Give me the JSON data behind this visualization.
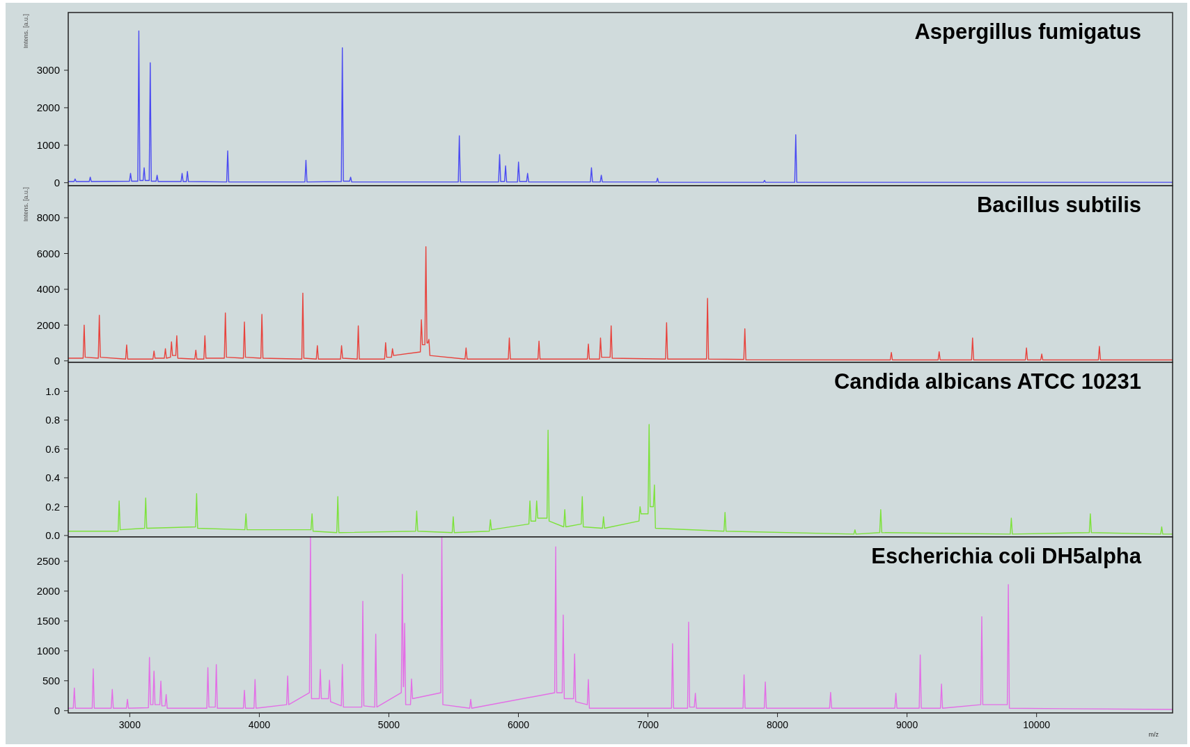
{
  "chart_data": [
    {
      "type": "line",
      "title": "Aspergillus fumigatus",
      "ylabel": "Intens. [a.u.]",
      "xlim": [
        2525,
        11050
      ],
      "ylim": [
        -80,
        4540
      ],
      "yticks": [
        0,
        1000,
        2000,
        3000
      ],
      "tick_labels": "y",
      "color": "#4a4af2",
      "x": [
        2525,
        2570,
        2578,
        2586,
        2687,
        2695,
        2703,
        2998,
        3006,
        3014,
        3062,
        3070,
        3078,
        3103,
        3111,
        3119,
        3150,
        3158,
        3166,
        3203,
        3211,
        3219,
        3396,
        3404,
        3412,
        3437,
        3445,
        3453,
        3748,
        3756,
        3764,
        4352,
        4360,
        4368,
        4633,
        4641,
        4649,
        4697,
        4705,
        4713,
        5536,
        5544,
        5552,
        5847,
        5855,
        5863,
        5893,
        5901,
        5909,
        5993,
        6001,
        6009,
        6063,
        6071,
        6079,
        6556,
        6564,
        6572,
        6632,
        6640,
        6648,
        7066,
        7074,
        7082,
        7892,
        7900,
        7908,
        8133,
        8141,
        8149,
        11050
      ],
      "values": [
        30,
        30,
        100,
        30,
        30,
        150,
        30,
        40,
        250,
        40,
        40,
        4050,
        60,
        60,
        400,
        60,
        60,
        3200,
        40,
        40,
        200,
        30,
        30,
        250,
        30,
        30,
        300,
        30,
        20,
        850,
        20,
        20,
        600,
        20,
        30,
        3600,
        40,
        40,
        150,
        20,
        20,
        1250,
        20,
        20,
        750,
        30,
        30,
        450,
        20,
        20,
        550,
        30,
        30,
        250,
        20,
        20,
        400,
        20,
        20,
        200,
        20,
        20,
        120,
        10,
        10,
        60,
        10,
        10,
        1280,
        10,
        10
      ]
    },
    {
      "type": "line",
      "title": "Bacillus subtilis",
      "ylabel": "Intens. [a.u.]",
      "xlim": [
        2525,
        11050
      ],
      "ylim": [
        -85,
        9790
      ],
      "yticks": [
        0,
        2000,
        4000,
        6000,
        8000
      ],
      "tick_labels": "y",
      "color": "#e8423c",
      "x": [
        2525,
        2640,
        2648,
        2656,
        2757,
        2765,
        2773,
        2968,
        2976,
        2984,
        3179,
        3187,
        3195,
        3267,
        3275,
        3283,
        3314,
        3322,
        3330,
        3355,
        3363,
        3371,
        3502,
        3510,
        3518,
        3572,
        3580,
        3588,
        3730,
        3738,
        3746,
        3877,
        3885,
        3893,
        4012,
        4020,
        4028,
        4328,
        4336,
        4344,
        4440,
        4448,
        4456,
        4627,
        4635,
        4643,
        4756,
        4764,
        4772,
        4967,
        4975,
        4983,
        5020,
        5028,
        5036,
        5243,
        5251,
        5259,
        5278,
        5286,
        5294,
        5301,
        5309,
        5317,
        5588,
        5596,
        5604,
        5922,
        5930,
        5938,
        6151,
        6159,
        6167,
        6532,
        6540,
        6548,
        6626,
        6634,
        6642,
        6708,
        6716,
        6724,
        7136,
        7144,
        7152,
        7452,
        7460,
        7468,
        7740,
        7748,
        7756,
        8871,
        8879,
        8887,
        9240,
        9248,
        9256,
        9498,
        9506,
        9514,
        9914,
        9922,
        9930,
        10032,
        10040,
        10048,
        10477,
        10485,
        10493,
        11050
      ],
      "values": [
        150,
        150,
        2000,
        200,
        150,
        2550,
        200,
        100,
        890,
        100,
        100,
        550,
        150,
        150,
        680,
        150,
        200,
        1060,
        300,
        300,
        1400,
        150,
        100,
        600,
        100,
        100,
        1400,
        150,
        150,
        2680,
        200,
        150,
        2170,
        200,
        150,
        2600,
        150,
        100,
        3790,
        150,
        100,
        850,
        100,
        100,
        850,
        150,
        100,
        1960,
        100,
        100,
        1020,
        200,
        200,
        680,
        300,
        500,
        2300,
        900,
        900,
        6380,
        1000,
        1000,
        1200,
        300,
        100,
        720,
        100,
        100,
        1280,
        100,
        100,
        1100,
        100,
        100,
        940,
        100,
        100,
        1280,
        200,
        200,
        1960,
        150,
        100,
        2130,
        100,
        100,
        3490,
        100,
        80,
        1790,
        60,
        50,
        470,
        50,
        50,
        510,
        50,
        50,
        1280,
        50,
        50,
        720,
        50,
        50,
        380,
        50,
        50,
        810,
        50,
        50
      ]
    },
    {
      "type": "line",
      "title": "Candida albicans ATCC 10231",
      "xlim": [
        2525,
        11050
      ],
      "ylim": [
        -0.01,
        1.2
      ],
      "yticks": [
        {
          "value": 0,
          "label": "0.0"
        },
        {
          "value": 0.2,
          "label": "0.2"
        },
        {
          "value": 0.4,
          "label": "0.4"
        },
        {
          "value": 0.6,
          "label": "0.6"
        },
        {
          "value": 0.8,
          "label": "0.8"
        },
        {
          "value": 1,
          "label": "1.0"
        }
      ],
      "tick_labels": "y",
      "color": "#7ce23a",
      "x": [
        2525,
        2910,
        2918,
        2926,
        3115,
        3123,
        3131,
        3508,
        3516,
        3524,
        3889,
        3897,
        3905,
        4399,
        4407,
        4415,
        4598,
        4606,
        4614,
        5207,
        5215,
        5223,
        5489,
        5497,
        5505,
        5776,
        5784,
        5792,
        6081,
        6089,
        6097,
        6133,
        6141,
        6149,
        6221,
        6229,
        6237,
        6350,
        6358,
        6366,
        6485,
        6493,
        6501,
        6649,
        6657,
        6665,
        6931,
        6939,
        6947,
        7001,
        7009,
        7017,
        7042,
        7050,
        7058,
        7587,
        7595,
        7603,
        8590,
        8598,
        8606,
        8789,
        8797,
        8805,
        9797,
        9805,
        9813,
        10407,
        10415,
        10423,
        10958,
        10966,
        10974,
        11050
      ],
      "values": [
        0.03,
        0.03,
        0.24,
        0.04,
        0.05,
        0.26,
        0.05,
        0.06,
        0.29,
        0.05,
        0.04,
        0.15,
        0.04,
        0.04,
        0.15,
        0.03,
        0.02,
        0.27,
        0.02,
        0.03,
        0.17,
        0.03,
        0.02,
        0.13,
        0.02,
        0.03,
        0.11,
        0.04,
        0.08,
        0.24,
        0.1,
        0.1,
        0.24,
        0.12,
        0.12,
        0.73,
        0.1,
        0.06,
        0.18,
        0.06,
        0.08,
        0.27,
        0.06,
        0.05,
        0.13,
        0.05,
        0.1,
        0.2,
        0.15,
        0.15,
        0.77,
        0.2,
        0.2,
        0.35,
        0.05,
        0.03,
        0.16,
        0.03,
        0.01,
        0.04,
        0.01,
        0.02,
        0.18,
        0.02,
        0.01,
        0.12,
        0.01,
        0.02,
        0.15,
        0.02,
        0.01,
        0.06,
        0.01,
        0.01
      ]
    },
    {
      "type": "line",
      "title": "Escherichia coli DH5alpha",
      "xlabel": "m/z",
      "xlim": [
        2525,
        11050
      ],
      "ylim": [
        -38,
        2906
      ],
      "xticks": [
        3000,
        4000,
        5000,
        6000,
        7000,
        8000,
        9000,
        10000
      ],
      "yticks": [
        0,
        500,
        1000,
        1500,
        2000,
        2500
      ],
      "color": "#e36ee6",
      "x": [
        2525,
        2564,
        2572,
        2580,
        2710,
        2718,
        2726,
        2857,
        2865,
        2873,
        2974,
        2982,
        2990,
        3144,
        3152,
        3160,
        3179,
        3187,
        3195,
        3232,
        3240,
        3248,
        3273,
        3281,
        3289,
        3595,
        3603,
        3611,
        3660,
        3668,
        3676,
        3877,
        3885,
        3893,
        3959,
        3967,
        3975,
        4211,
        4219,
        4227,
        4387,
        4395,
        4403,
        4463,
        4471,
        4479,
        4534,
        4542,
        4550,
        4633,
        4641,
        4649,
        4791,
        4799,
        4807,
        4891,
        4899,
        4907,
        5096,
        5104,
        5112,
        5114,
        5122,
        5130,
        5167,
        5175,
        5183,
        5401,
        5409,
        5417,
        5624,
        5632,
        5640,
        6280,
        6288,
        6296,
        6338,
        6346,
        6354,
        6426,
        6434,
        6442,
        6532,
        6540,
        6548,
        7182,
        7190,
        7198,
        7306,
        7314,
        7322,
        7358,
        7366,
        7374,
        7734,
        7742,
        7750,
        7898,
        7906,
        7914,
        8402,
        8410,
        8418,
        8906,
        8914,
        8922,
        9094,
        9102,
        9110,
        9258,
        9266,
        9274,
        9569,
        9577,
        9585,
        9774,
        9782,
        9790,
        11050
      ],
      "values": [
        40,
        40,
        380,
        40,
        40,
        700,
        40,
        40,
        355,
        40,
        40,
        190,
        40,
        50,
        890,
        100,
        100,
        660,
        100,
        100,
        495,
        80,
        80,
        270,
        40,
        40,
        720,
        60,
        60,
        770,
        40,
        40,
        340,
        40,
        40,
        520,
        40,
        100,
        580,
        100,
        300,
        2900,
        200,
        200,
        690,
        200,
        200,
        510,
        150,
        80,
        775,
        60,
        60,
        1830,
        80,
        60,
        1280,
        60,
        300,
        2280,
        400,
        400,
        1460,
        100,
        100,
        530,
        200,
        300,
        2900,
        100,
        40,
        190,
        40,
        300,
        2740,
        300,
        300,
        1600,
        200,
        200,
        950,
        150,
        100,
        520,
        40,
        40,
        1120,
        40,
        40,
        1480,
        60,
        60,
        290,
        40,
        40,
        600,
        40,
        40,
        480,
        40,
        40,
        305,
        40,
        40,
        290,
        40,
        40,
        930,
        40,
        40,
        445,
        40,
        100,
        1570,
        100,
        100,
        2110,
        40,
        20
      ]
    }
  ]
}
